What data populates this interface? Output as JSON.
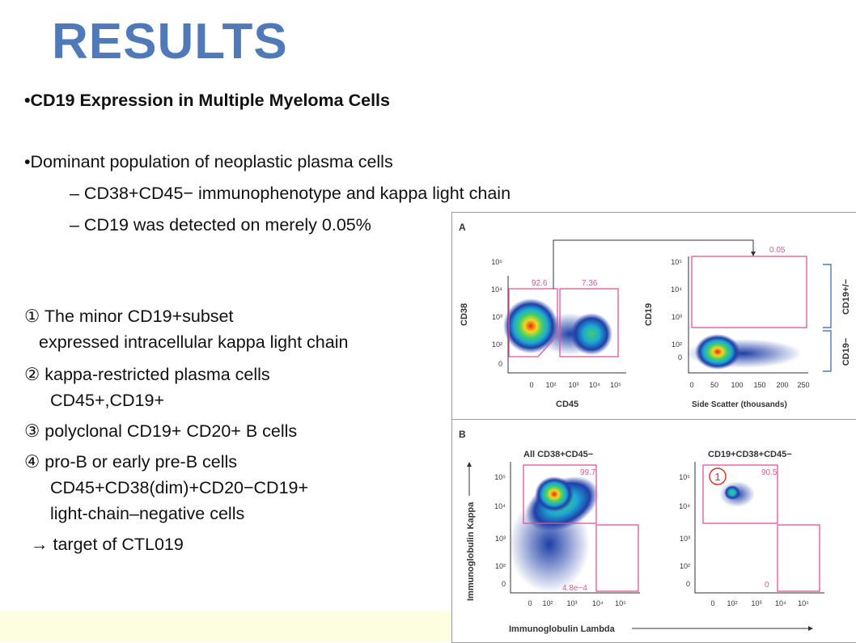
{
  "slide": {
    "title": "RESULTS",
    "bullets": [
      "•CD19 Expression in Multiple Myeloma Cells",
      "•Dominant population of neoplastic plasma cells",
      "–  CD38+CD45− immunophenotype and kappa light chain",
      "–  CD19 was detected on merely 0.05%"
    ],
    "notes": [
      "① The minor CD19+subset",
      "expressed intracellular kappa light chain",
      "② kappa-restricted plasma cells",
      "CD45+,CD19+",
      "③ polyclonal CD19+ CD20+ B cells",
      "④ pro-B or early pre-B cells",
      "CD45+CD38(dim)+CD20−CD19+",
      "light-chain–negative cells",
      "→ target of CTL019"
    ]
  },
  "figure": {
    "panel_a": {
      "label": "A",
      "left_plot": {
        "ylabel": "CD38",
        "xlabel": "CD45",
        "gate_left": "92.6",
        "gate_right": "7.36"
      },
      "right_plot": {
        "ylabel": "CD19",
        "xlabel": "Side Scatter (thousands)",
        "gate_top": "0.05",
        "bracket_top": "CD19+/−",
        "bracket_bottom": "CD19−"
      },
      "log_ticks": [
        "10⁵",
        "10⁴",
        "10³",
        "10²",
        "0"
      ],
      "log_ticks_x": [
        "0",
        "10²",
        "10³",
        "10⁴",
        "10⁵"
      ],
      "ssc_ticks": [
        "0",
        "50",
        "100",
        "150",
        "200",
        "250"
      ]
    },
    "panel_b": {
      "label": "B",
      "left_plot": {
        "title": "All CD38+CD45−",
        "gate_top": "99.7",
        "gate_bottom": "4.8e−4"
      },
      "right_plot": {
        "title": "CD19+CD38+CD45−",
        "gate_top": "90.5",
        "gate_bottom": "0",
        "marker": "1"
      },
      "ylabel": "Immunoglobulin Kappa",
      "xlabel": "Immunoglobulin Lambda",
      "log_ticks": [
        "10⁵",
        "10⁴",
        "10³",
        "10²",
        "0"
      ],
      "log_ticks_x": [
        "0",
        "10²",
        "10³",
        "10⁴",
        "10⁵"
      ]
    },
    "colors": {
      "gate": "#e0559a",
      "axis": "#333333",
      "density_low": "#1f3fa8",
      "density_high": "#e8241c"
    }
  }
}
